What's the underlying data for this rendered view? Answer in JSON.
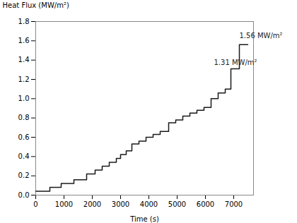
{
  "chart_data": {
    "type": "line",
    "xlabel": "Time (s)",
    "ylabel": "Heat Flux (MW/m²)",
    "x": [
      0,
      500,
      500,
      900,
      900,
      1350,
      1350,
      1800,
      1800,
      2100,
      2100,
      2350,
      2350,
      2600,
      2600,
      2850,
      2850,
      3000,
      3000,
      3200,
      3200,
      3400,
      3400,
      3650,
      3650,
      3900,
      3900,
      4150,
      4150,
      4400,
      4400,
      4700,
      4700,
      4950,
      4950,
      5200,
      5200,
      5450,
      5450,
      5700,
      5700,
      5950,
      5950,
      6200,
      6200,
      6450,
      6450,
      6700,
      6700,
      6900,
      6900,
      7200,
      7200,
      7500
    ],
    "values": [
      0.04,
      0.04,
      0.08,
      0.08,
      0.12,
      0.12,
      0.16,
      0.16,
      0.22,
      0.22,
      0.26,
      0.26,
      0.3,
      0.3,
      0.34,
      0.34,
      0.38,
      0.38,
      0.42,
      0.42,
      0.46,
      0.46,
      0.53,
      0.53,
      0.56,
      0.56,
      0.6,
      0.6,
      0.63,
      0.63,
      0.66,
      0.66,
      0.75,
      0.75,
      0.78,
      0.78,
      0.82,
      0.82,
      0.85,
      0.85,
      0.88,
      0.88,
      0.91,
      0.91,
      1.0,
      1.0,
      1.06,
      1.06,
      1.1,
      1.1,
      1.31,
      1.31,
      1.56,
      1.56
    ],
    "color": "#1a1a1a",
    "xlim": [
      0,
      7700
    ],
    "ylim": [
      0.0,
      1.8
    ],
    "xticks": [
      0,
      1000,
      2000,
      3000,
      4000,
      5000,
      6000,
      7000
    ],
    "yticks": [
      {
        "value": 0.0,
        "label": "0.0"
      },
      0.2,
      0.4,
      0.6,
      0.8,
      {
        "value": 1.0,
        "label": "1.0"
      },
      1.2,
      1.4,
      1.6,
      1.8
    ],
    "grid": false,
    "annotations": [
      {
        "text": "1.56 MW/m²",
        "x": 7200,
        "y": 1.63
      },
      {
        "text": "1.31 MW/m²",
        "x": 6300,
        "y": 1.35
      }
    ]
  }
}
